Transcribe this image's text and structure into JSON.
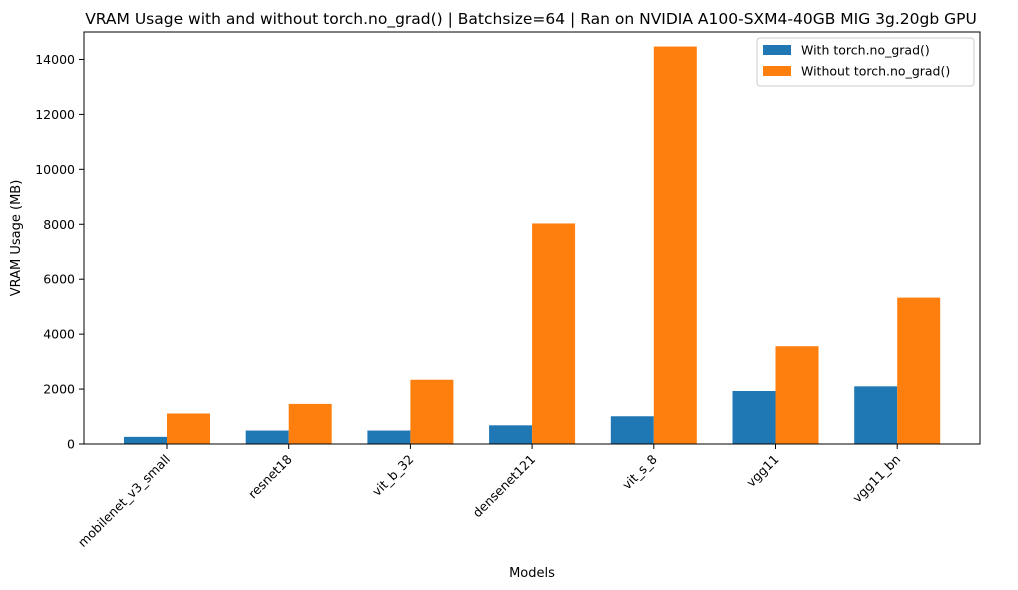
{
  "chart_data": {
    "type": "bar",
    "title": "VRAM Usage with and without torch.no_grad() | Batchsize=64 | Ran on NVIDIA A100-SXM4-40GB MIG 3g.20gb GPU",
    "xlabel": "Models",
    "ylabel": "VRAM Usage (MB)",
    "ylim": [
      0,
      15000
    ],
    "yticks": [
      0,
      2000,
      4000,
      6000,
      8000,
      10000,
      12000,
      14000
    ],
    "categories": [
      "mobilenet_v3_small",
      "resnet18",
      "vit_b_32",
      "densenet121",
      "vit_s_8",
      "vgg11",
      "vgg11_bn"
    ],
    "series": [
      {
        "name": "With torch.no_grad()",
        "color": "#1f77b4",
        "values": [
          260,
          490,
          490,
          680,
          1010,
          1930,
          2100
        ]
      },
      {
        "name": "Without torch.no_grad()",
        "color": "#ff7f0e",
        "values": [
          1110,
          1460,
          2340,
          8030,
          14470,
          3560,
          5330
        ]
      }
    ],
    "legend_position": "top-right",
    "grid": false
  }
}
